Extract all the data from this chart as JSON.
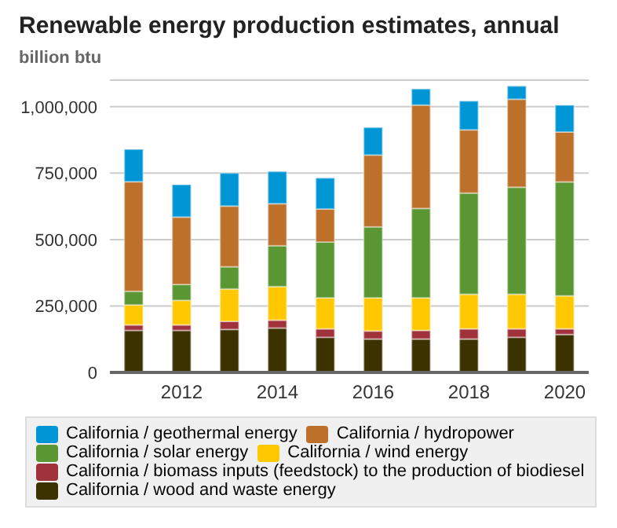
{
  "chart_data": {
    "type": "bar",
    "title": "Renewable energy production estimates, annual",
    "ylabel": "billion btu",
    "stacked": true,
    "categories": [
      null,
      "2012",
      null,
      "2014",
      null,
      "2016",
      null,
      "2018",
      null,
      "2020"
    ],
    "series": [
      {
        "name": "California / wood and waste energy",
        "color": "#3c3200",
        "values": [
          158000,
          158000,
          162000,
          167000,
          132000,
          126000,
          126000,
          126000,
          132000,
          143000
        ]
      },
      {
        "name": "California / biomass inputs (feedstock) to the production of biodiesel",
        "color": "#a0323c",
        "values": [
          21000,
          21000,
          30000,
          30000,
          32000,
          30000,
          32000,
          38000,
          32000,
          21000
        ]
      },
      {
        "name": "California / wind energy",
        "color": "#ffc800",
        "values": [
          75000,
          92000,
          122000,
          126000,
          117000,
          125000,
          123000,
          130000,
          130000,
          124000
        ]
      },
      {
        "name": "California / solar energy",
        "color": "#5a9632",
        "values": [
          51000,
          60000,
          84000,
          154000,
          210000,
          267000,
          336000,
          381000,
          403000,
          429000
        ]
      },
      {
        "name": "California / hydropower",
        "color": "#bd702a",
        "values": [
          413000,
          254000,
          228000,
          158000,
          124000,
          270000,
          389000,
          238000,
          331000,
          188000
        ]
      },
      {
        "name": "California / geothermal energy",
        "color": "#0096d6",
        "values": [
          122000,
          122000,
          124000,
          121000,
          117000,
          104000,
          61000,
          109000,
          50000,
          101000
        ]
      }
    ],
    "ylim": [
      0,
      1100000
    ],
    "yticks": [
      0,
      {
        "value": 250000,
        "label": "250,000"
      },
      {
        "value": 500000,
        "label": "500,000"
      },
      {
        "value": 750000,
        "label": "750,000"
      },
      {
        "value": 1000000,
        "label": "1,000,000"
      }
    ],
    "grid": "y",
    "legend": "bottom"
  }
}
